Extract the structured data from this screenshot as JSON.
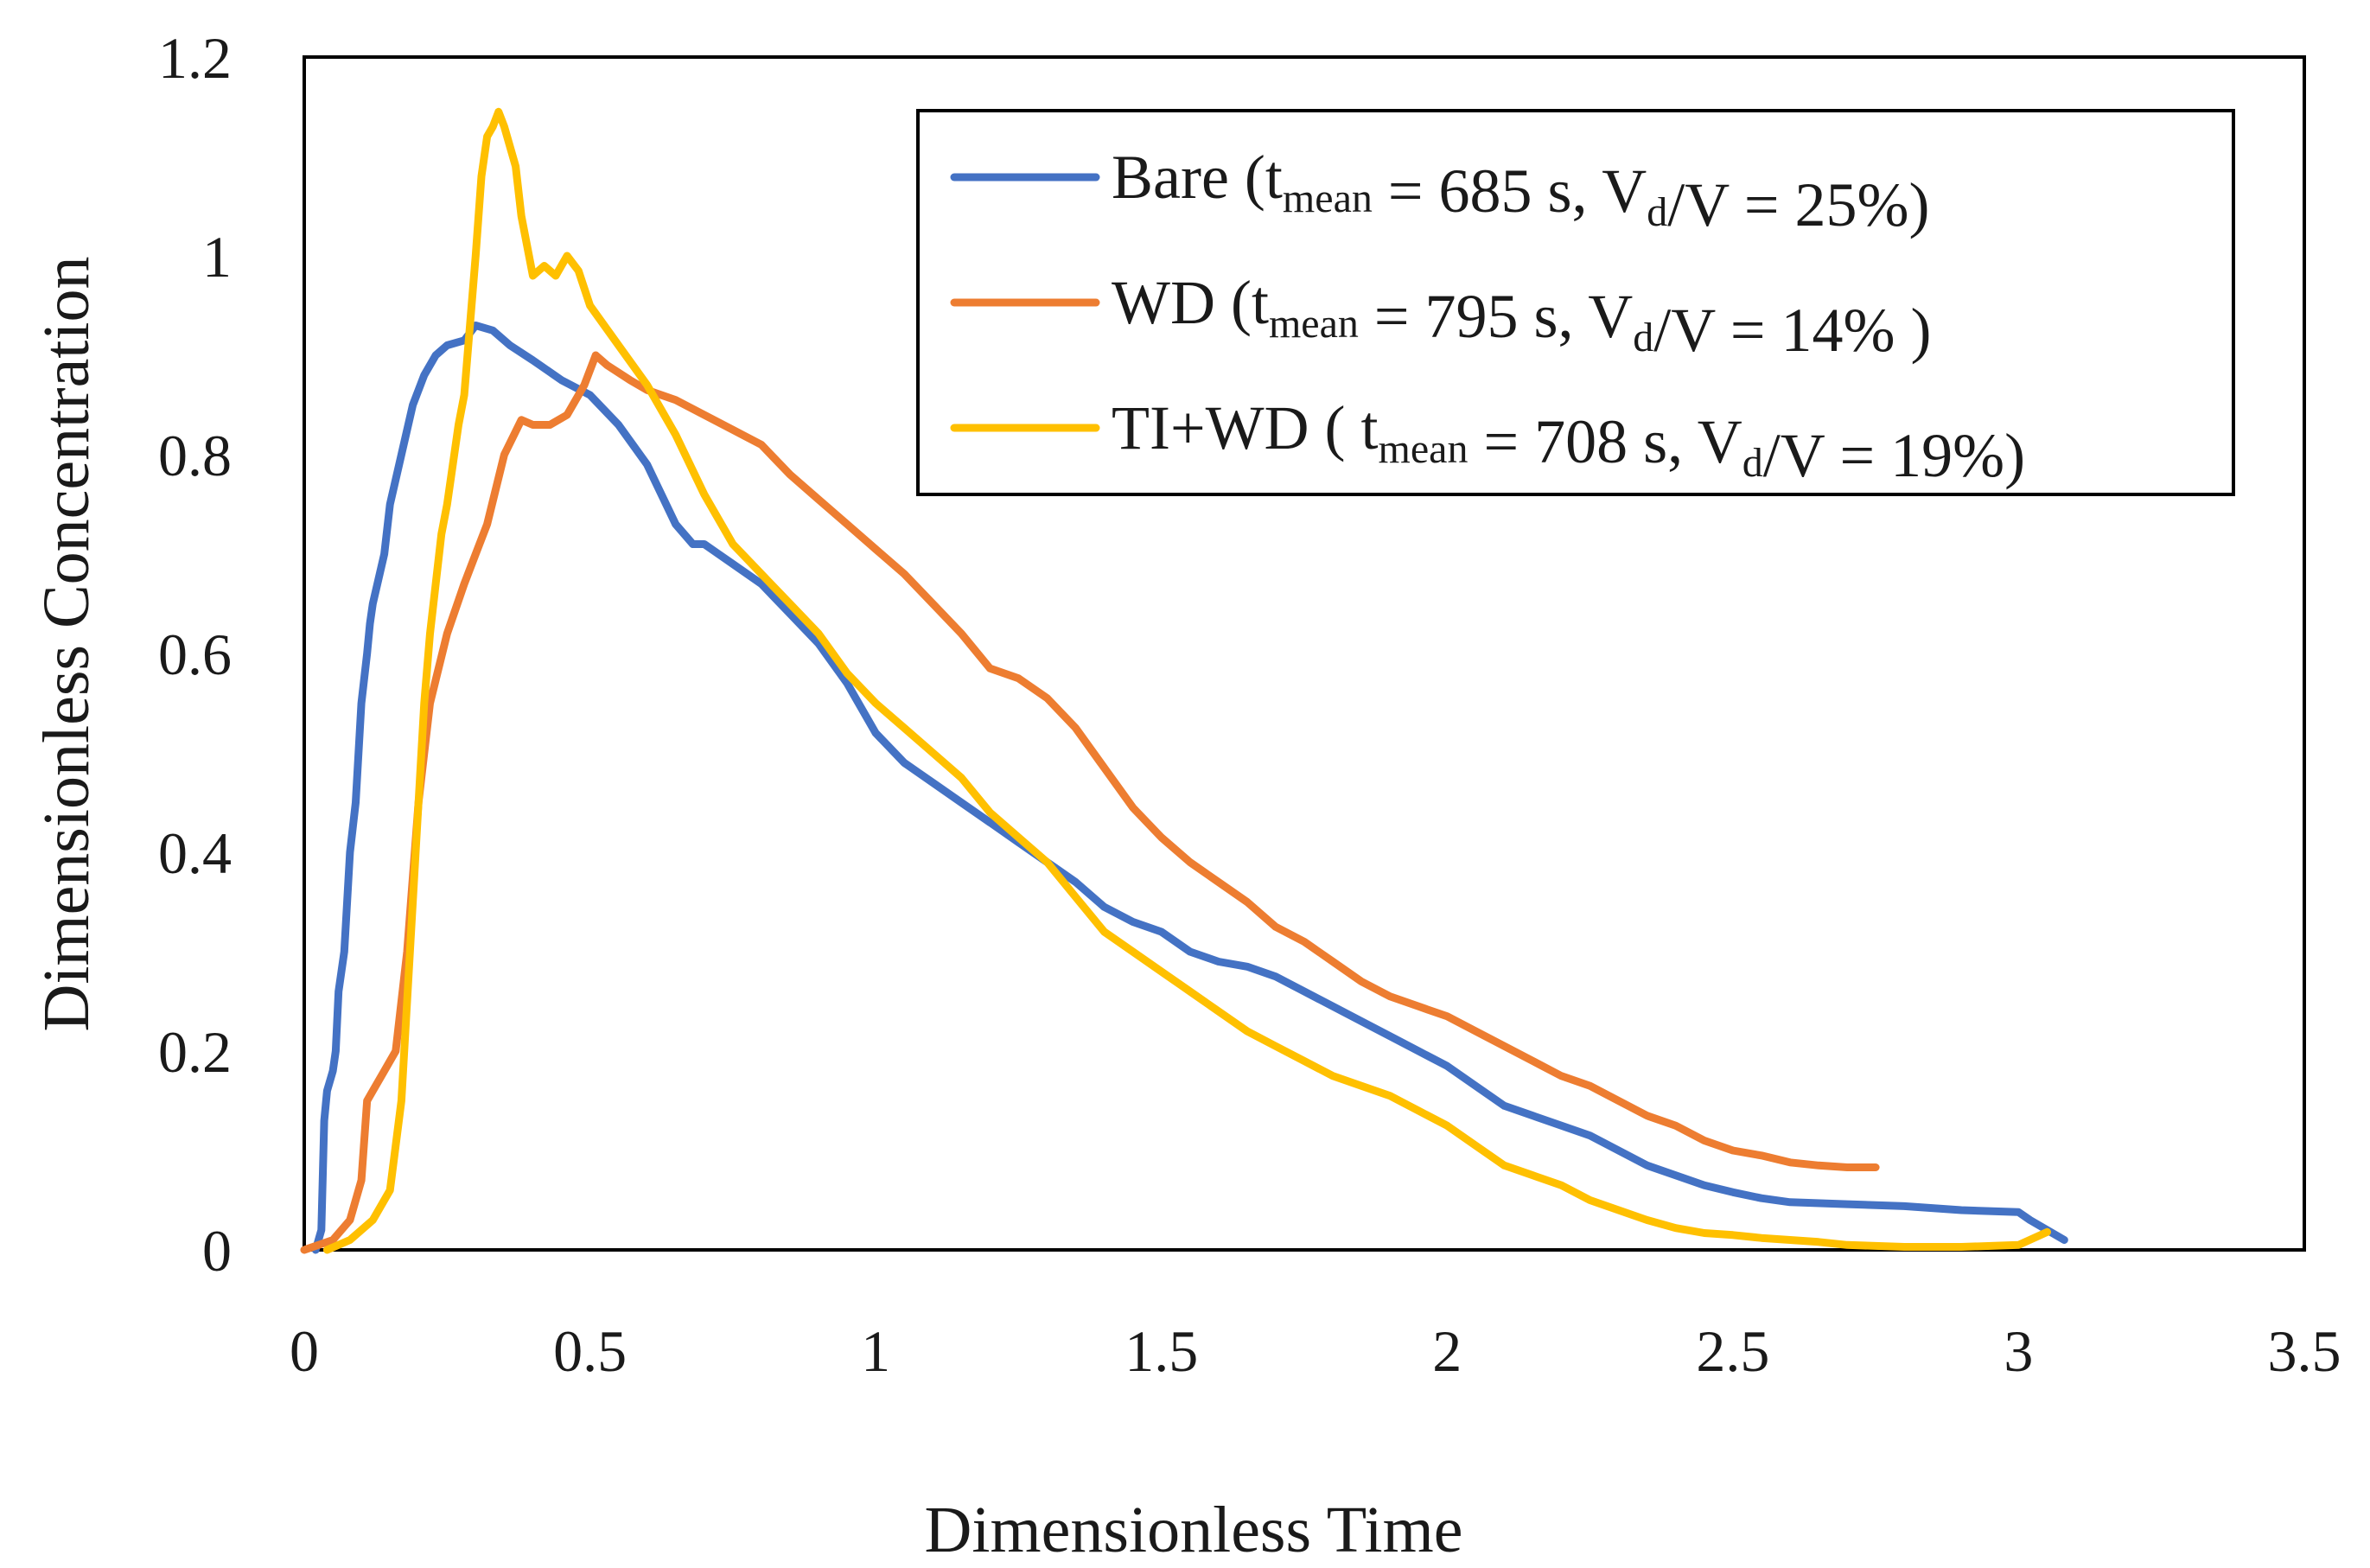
{
  "chart_data": {
    "type": "line",
    "title": "",
    "xlabel": "Dimensionless Time",
    "ylabel": "Dimensionless Concentration",
    "xlim": [
      0,
      3.5
    ],
    "ylim": [
      0,
      1.2
    ],
    "xticks": [
      0,
      0.5,
      1,
      1.5,
      2,
      2.5,
      3,
      3.5
    ],
    "xtick_labels": [
      "0",
      "0.5",
      "1",
      "1.5",
      "2",
      "2.5",
      "3",
      "3.5"
    ],
    "yticks": [
      0,
      0.2,
      0.4,
      0.6,
      0.8,
      1,
      1.2
    ],
    "ytick_labels": [
      "0",
      "0.2",
      "0.4",
      "0.6",
      "0.8",
      "1",
      "1.2"
    ],
    "grid": false,
    "legend_position": "top-right",
    "series": [
      {
        "name": "Bare",
        "legend": {
          "name": "Bare",
          "open": " (",
          "t": "t",
          "t_sub": "mean",
          "t_eq": " = 685 s, ",
          "v": "V",
          "v_sub": "d",
          "v_eq": "/V = 25%",
          "close": ")"
        },
        "color": "#4472C4",
        "x": [
          0.02,
          0.03,
          0.035,
          0.04,
          0.05,
          0.055,
          0.06,
          0.07,
          0.075,
          0.08,
          0.09,
          0.095,
          0.1,
          0.11,
          0.115,
          0.12,
          0.14,
          0.15,
          0.17,
          0.19,
          0.21,
          0.23,
          0.25,
          0.28,
          0.3,
          0.33,
          0.36,
          0.4,
          0.45,
          0.5,
          0.55,
          0.6,
          0.65,
          0.68,
          0.7,
          0.75,
          0.8,
          0.85,
          0.9,
          0.95,
          0.97,
          1.0,
          1.05,
          1.1,
          1.15,
          1.2,
          1.25,
          1.3,
          1.35,
          1.4,
          1.45,
          1.5,
          1.55,
          1.6,
          1.65,
          1.7,
          1.75,
          1.8,
          1.85,
          1.9,
          1.95,
          2.0,
          2.05,
          2.1,
          2.15,
          2.2,
          2.25,
          2.3,
          2.35,
          2.4,
          2.45,
          2.5,
          2.55,
          2.6,
          2.7,
          2.8,
          2.9,
          3.0,
          3.02,
          3.05,
          3.08
        ],
        "y": [
          0.0,
          0.02,
          0.13,
          0.16,
          0.18,
          0.2,
          0.26,
          0.3,
          0.35,
          0.4,
          0.45,
          0.5,
          0.55,
          0.6,
          0.63,
          0.65,
          0.7,
          0.75,
          0.8,
          0.85,
          0.88,
          0.9,
          0.91,
          0.915,
          0.93,
          0.925,
          0.91,
          0.895,
          0.875,
          0.86,
          0.83,
          0.79,
          0.73,
          0.71,
          0.71,
          0.69,
          0.67,
          0.64,
          0.61,
          0.57,
          0.55,
          0.52,
          0.49,
          0.47,
          0.45,
          0.43,
          0.41,
          0.39,
          0.37,
          0.345,
          0.33,
          0.32,
          0.3,
          0.29,
          0.285,
          0.275,
          0.26,
          0.245,
          0.23,
          0.215,
          0.2,
          0.185,
          0.165,
          0.145,
          0.135,
          0.125,
          0.115,
          0.1,
          0.085,
          0.075,
          0.065,
          0.058,
          0.052,
          0.048,
          0.046,
          0.044,
          0.04,
          0.038,
          0.03,
          0.02,
          0.01
        ]
      },
      {
        "name": "WD",
        "legend": {
          "name": "WD",
          "open": " (",
          "t": "t",
          "t_sub": "mean",
          "t_eq": " = 795 s, ",
          "v": "V",
          "v_sub": "d",
          "v_eq": "/V = 14% ",
          "close": ")"
        },
        "color": "#ED7D31",
        "x": [
          0.0,
          0.05,
          0.08,
          0.1,
          0.11,
          0.12,
          0.14,
          0.16,
          0.18,
          0.2,
          0.22,
          0.25,
          0.28,
          0.3,
          0.32,
          0.35,
          0.38,
          0.4,
          0.43,
          0.46,
          0.49,
          0.51,
          0.53,
          0.57,
          0.6,
          0.65,
          0.7,
          0.75,
          0.8,
          0.85,
          0.9,
          0.95,
          1.0,
          1.05,
          1.1,
          1.15,
          1.2,
          1.25,
          1.3,
          1.35,
          1.4,
          1.45,
          1.5,
          1.55,
          1.6,
          1.65,
          1.7,
          1.75,
          1.8,
          1.85,
          1.9,
          1.95,
          2.0,
          2.05,
          2.1,
          2.15,
          2.2,
          2.25,
          2.3,
          2.35,
          2.4,
          2.45,
          2.5,
          2.55,
          2.6,
          2.65,
          2.7,
          2.75
        ],
        "y": [
          0.0,
          0.01,
          0.03,
          0.07,
          0.15,
          0.16,
          0.18,
          0.2,
          0.3,
          0.45,
          0.55,
          0.62,
          0.67,
          0.7,
          0.73,
          0.8,
          0.835,
          0.83,
          0.83,
          0.84,
          0.87,
          0.9,
          0.89,
          0.875,
          0.865,
          0.855,
          0.84,
          0.825,
          0.81,
          0.78,
          0.755,
          0.73,
          0.705,
          0.68,
          0.65,
          0.62,
          0.585,
          0.575,
          0.555,
          0.525,
          0.485,
          0.445,
          0.415,
          0.39,
          0.37,
          0.35,
          0.325,
          0.31,
          0.29,
          0.27,
          0.255,
          0.245,
          0.235,
          0.22,
          0.205,
          0.19,
          0.175,
          0.165,
          0.15,
          0.135,
          0.125,
          0.11,
          0.1,
          0.095,
          0.088,
          0.085,
          0.083,
          0.083
        ]
      },
      {
        "name": "TI+WD",
        "legend": {
          "name": "TI+WD",
          "open": " ( ",
          "t": "t",
          "t_sub": "mean",
          "t_eq": " = 708 s, ",
          "v": "V",
          "v_sub": "d",
          "v_eq": "/V = 19%",
          "close": ")"
        },
        "color": "#FFC000",
        "x": [
          0.04,
          0.08,
          0.1,
          0.12,
          0.15,
          0.17,
          0.19,
          0.2,
          0.21,
          0.22,
          0.23,
          0.24,
          0.25,
          0.27,
          0.28,
          0.29,
          0.3,
          0.31,
          0.32,
          0.33,
          0.34,
          0.35,
          0.37,
          0.38,
          0.4,
          0.42,
          0.44,
          0.45,
          0.46,
          0.48,
          0.5,
          0.55,
          0.6,
          0.65,
          0.7,
          0.75,
          0.8,
          0.85,
          0.9,
          0.95,
          1.0,
          1.05,
          1.1,
          1.15,
          1.2,
          1.25,
          1.3,
          1.35,
          1.4,
          1.45,
          1.5,
          1.55,
          1.6,
          1.65,
          1.7,
          1.75,
          1.8,
          1.85,
          1.9,
          1.95,
          2.0,
          2.05,
          2.1,
          2.15,
          2.2,
          2.25,
          2.3,
          2.35,
          2.4,
          2.45,
          2.5,
          2.55,
          2.6,
          2.65,
          2.7,
          2.8,
          2.9,
          3.0,
          3.05
        ],
        "y": [
          0.0,
          0.01,
          0.02,
          0.03,
          0.06,
          0.15,
          0.35,
          0.45,
          0.55,
          0.62,
          0.67,
          0.72,
          0.75,
          0.83,
          0.86,
          0.93,
          1.0,
          1.08,
          1.12,
          1.13,
          1.145,
          1.13,
          1.09,
          1.04,
          0.98,
          0.99,
          0.98,
          0.99,
          1.0,
          0.985,
          0.95,
          0.91,
          0.87,
          0.82,
          0.76,
          0.71,
          0.68,
          0.65,
          0.62,
          0.58,
          0.55,
          0.525,
          0.5,
          0.475,
          0.44,
          0.415,
          0.39,
          0.355,
          0.32,
          0.3,
          0.28,
          0.26,
          0.24,
          0.22,
          0.205,
          0.19,
          0.175,
          0.165,
          0.155,
          0.14,
          0.125,
          0.105,
          0.085,
          0.075,
          0.065,
          0.05,
          0.04,
          0.03,
          0.022,
          0.017,
          0.015,
          0.012,
          0.01,
          0.008,
          0.005,
          0.003,
          0.003,
          0.005,
          0.018
        ]
      }
    ]
  }
}
